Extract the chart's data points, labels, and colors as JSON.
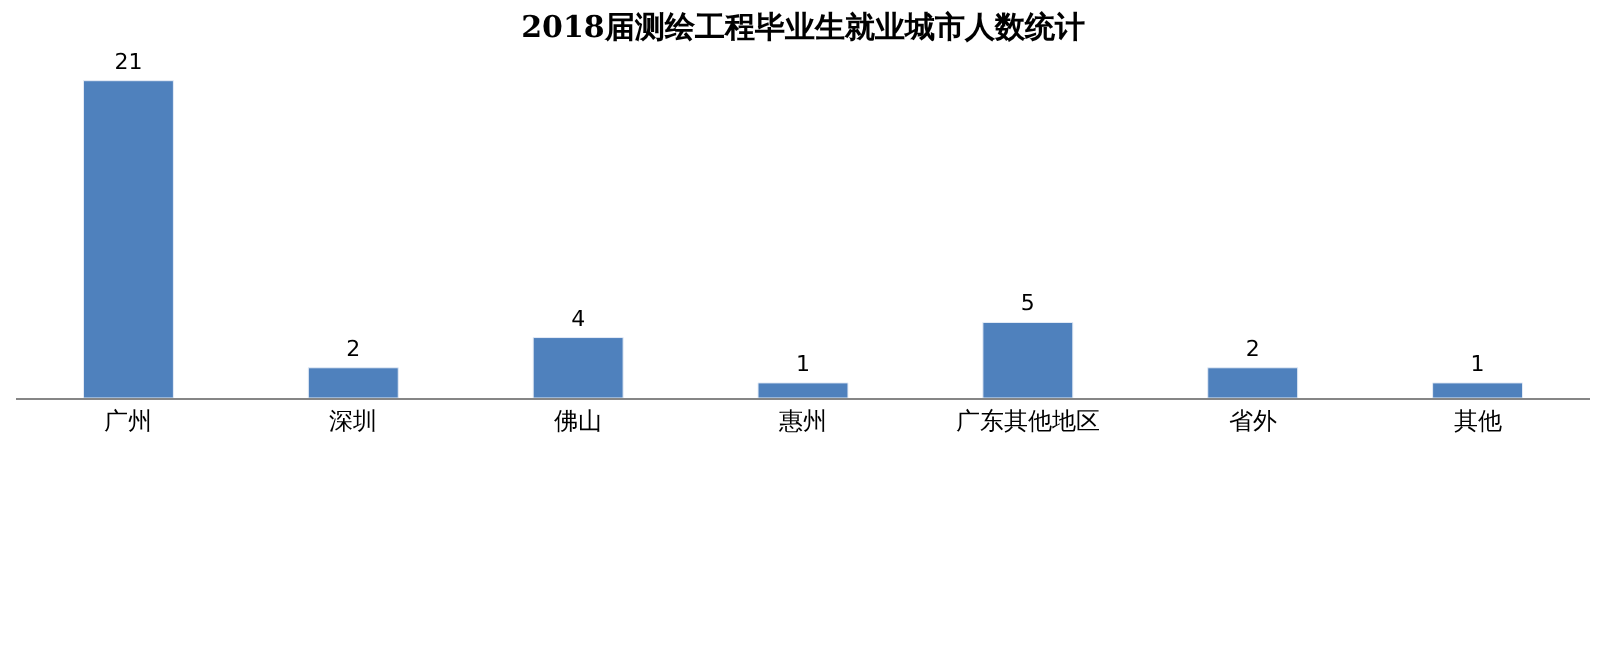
{
  "chart_data": {
    "type": "bar",
    "title": "2018届测绘工程毕业生就业城市人数统计",
    "categories": [
      "广州",
      "深圳",
      "佛山",
      "惠州",
      "广东其他地区",
      "省外",
      "其他"
    ],
    "values": [
      21,
      2,
      4,
      1,
      5,
      2,
      1
    ],
    "color": "#4f81bd",
    "data_labels": true
  }
}
